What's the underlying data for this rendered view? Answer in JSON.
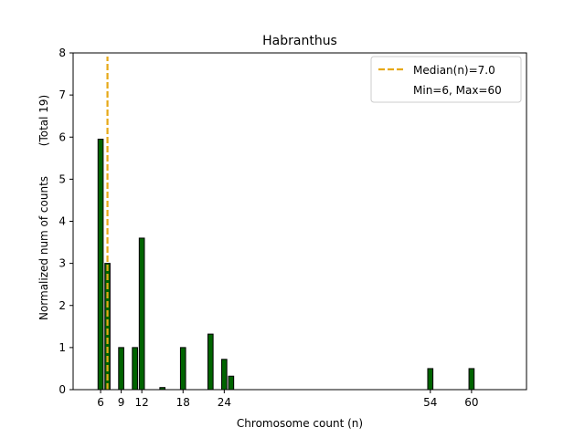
{
  "chart_data": {
    "type": "bar",
    "title": "Habranthus",
    "xlabel": "Chromosome count (n)",
    "ylabel_line1": "Normalized num of counts",
    "ylabel_line2": "(Total 19)",
    "xlim": [
      2,
      68
    ],
    "ylim": [
      0,
      8
    ],
    "x_ticks": [
      6,
      9,
      12,
      18,
      24,
      54,
      60
    ],
    "y_ticks": [
      0,
      1,
      2,
      3,
      4,
      5,
      6,
      7,
      8
    ],
    "bars": [
      {
        "x": 6,
        "value": 5.95
      },
      {
        "x": 7,
        "value": 3.0
      },
      {
        "x": 9,
        "value": 1.0
      },
      {
        "x": 11,
        "value": 1.0
      },
      {
        "x": 12,
        "value": 3.6
      },
      {
        "x": 15,
        "value": 0.05
      },
      {
        "x": 18,
        "value": 1.0
      },
      {
        "x": 22,
        "value": 1.32
      },
      {
        "x": 24,
        "value": 0.72
      },
      {
        "x": 25,
        "value": 0.32
      },
      {
        "x": 54,
        "value": 0.5
      },
      {
        "x": 60,
        "value": 0.5
      }
    ],
    "median": 7.0,
    "legend": {
      "median_label": "Median(n)=7.0",
      "range_label": "Min=6, Max=60",
      "position": "top-right"
    },
    "colors": {
      "bar_fill": "#006400",
      "bar_edge": "#000000",
      "median_line": "#e6a817"
    }
  }
}
